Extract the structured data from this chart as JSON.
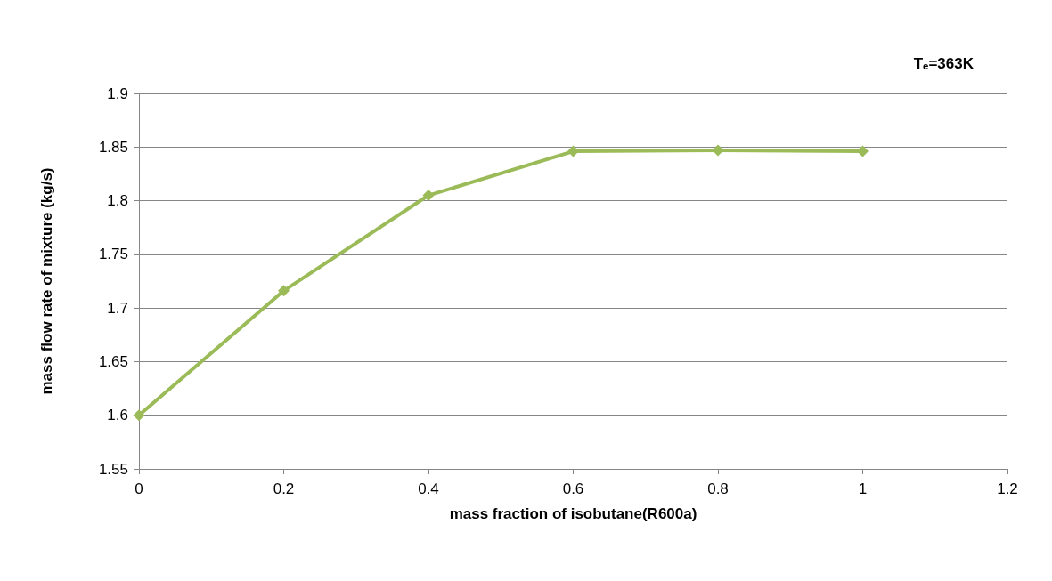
{
  "chart_data": {
    "type": "line",
    "xlabel": "mass fraction of isobutane(R600a)",
    "ylabel": "mass flow rate of mixture (kg/s)",
    "annotations": [
      "Tₑ=363K"
    ],
    "x": [
      0,
      0.2,
      0.4,
      0.6,
      0.8,
      1
    ],
    "series": [
      {
        "color": "#9bbb59",
        "values": [
          1.6,
          1.716,
          1.805,
          1.846,
          1.847,
          1.846
        ]
      }
    ],
    "xlim": [
      0,
      1.2
    ],
    "xticks": [
      0,
      0.2,
      0.4,
      0.6,
      0.8,
      1,
      1.2
    ],
    "ylim": [
      1.55,
      1.9
    ],
    "yticks": [
      1.55,
      1.6,
      1.65,
      1.7,
      1.75,
      1.8,
      1.85,
      1.9
    ],
    "grid": "y",
    "marker": "diamond",
    "line_style": "solid"
  }
}
